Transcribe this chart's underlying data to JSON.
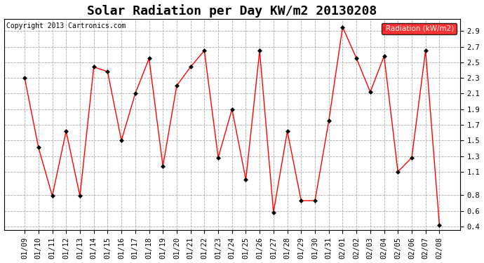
{
  "title": "Solar Radiation per Day KW/m2 20130208",
  "copyright": "Copyright 2013 Cartronics.com",
  "legend_label": "Radiation (kW/m2)",
  "dates": [
    "01/09",
    "01/10",
    "01/11",
    "01/12",
    "01/13",
    "01/14",
    "01/15",
    "01/16",
    "01/17",
    "01/18",
    "01/19",
    "01/20",
    "01/21",
    "01/22",
    "01/23",
    "01/24",
    "01/25",
    "01/26",
    "01/27",
    "01/28",
    "01/29",
    "01/30",
    "01/31",
    "02/01",
    "02/02",
    "02/03",
    "02/04",
    "02/05",
    "02/06",
    "02/07",
    "02/08"
  ],
  "values": [
    2.3,
    1.41,
    0.79,
    1.62,
    0.79,
    2.44,
    2.38,
    1.5,
    2.1,
    2.55,
    1.17,
    2.2,
    2.44,
    2.65,
    1.28,
    1.9,
    1.0,
    2.65,
    0.58,
    1.62,
    0.73,
    0.73,
    1.75,
    2.95,
    2.55,
    2.12,
    2.58,
    1.1,
    1.28,
    2.65,
    0.42
  ],
  "line_color": "red",
  "marker_color": "black",
  "bg_color": "#ffffff",
  "plot_bg_color": "#ffffff",
  "grid_color": "#aaaaaa",
  "ylim": [
    0.35,
    3.05
  ],
  "yticks": [
    0.4,
    0.6,
    0.8,
    1.1,
    1.3,
    1.5,
    1.7,
    1.9,
    2.1,
    2.3,
    2.5,
    2.7,
    2.9
  ],
  "title_fontsize": 13,
  "legend_bg": "red",
  "legend_text_color": "white",
  "copyright_fontsize": 7,
  "tick_fontsize": 7.5
}
